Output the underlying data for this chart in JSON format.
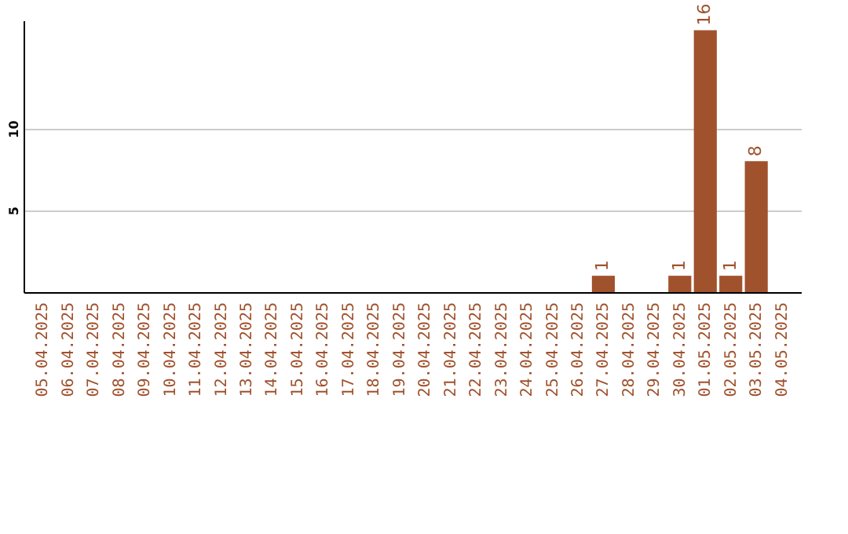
{
  "chart_data": {
    "type": "bar",
    "categories": [
      "05.04.2025",
      "06.04.2025",
      "07.04.2025",
      "08.04.2025",
      "09.04.2025",
      "10.04.2025",
      "11.04.2025",
      "12.04.2025",
      "13.04.2025",
      "14.04.2025",
      "15.04.2025",
      "16.04.2025",
      "17.04.2025",
      "18.04.2025",
      "19.04.2025",
      "20.04.2025",
      "21.04.2025",
      "22.04.2025",
      "23.04.2025",
      "24.04.2025",
      "25.04.2025",
      "26.04.2025",
      "27.04.2025",
      "28.04.2025",
      "29.04.2025",
      "30.04.2025",
      "01.05.2025",
      "02.05.2025",
      "03.05.2025",
      "04.05.2025"
    ],
    "values": [
      0,
      0,
      0,
      0,
      0,
      0,
      0,
      0,
      0,
      0,
      0,
      0,
      0,
      0,
      0,
      0,
      0,
      0,
      0,
      0,
      0,
      0,
      1,
      0,
      0,
      1,
      16,
      1,
      8,
      0
    ],
    "value_labels": [
      null,
      null,
      null,
      null,
      null,
      null,
      null,
      null,
      null,
      null,
      null,
      null,
      null,
      null,
      null,
      null,
      null,
      null,
      null,
      null,
      null,
      null,
      "1",
      null,
      null,
      "1",
      "16",
      "1",
      "8",
      null
    ],
    "color": "#a0522d",
    "ylim": [
      0,
      16.6
    ],
    "yticks": [
      5,
      10
    ],
    "grid": "y"
  }
}
